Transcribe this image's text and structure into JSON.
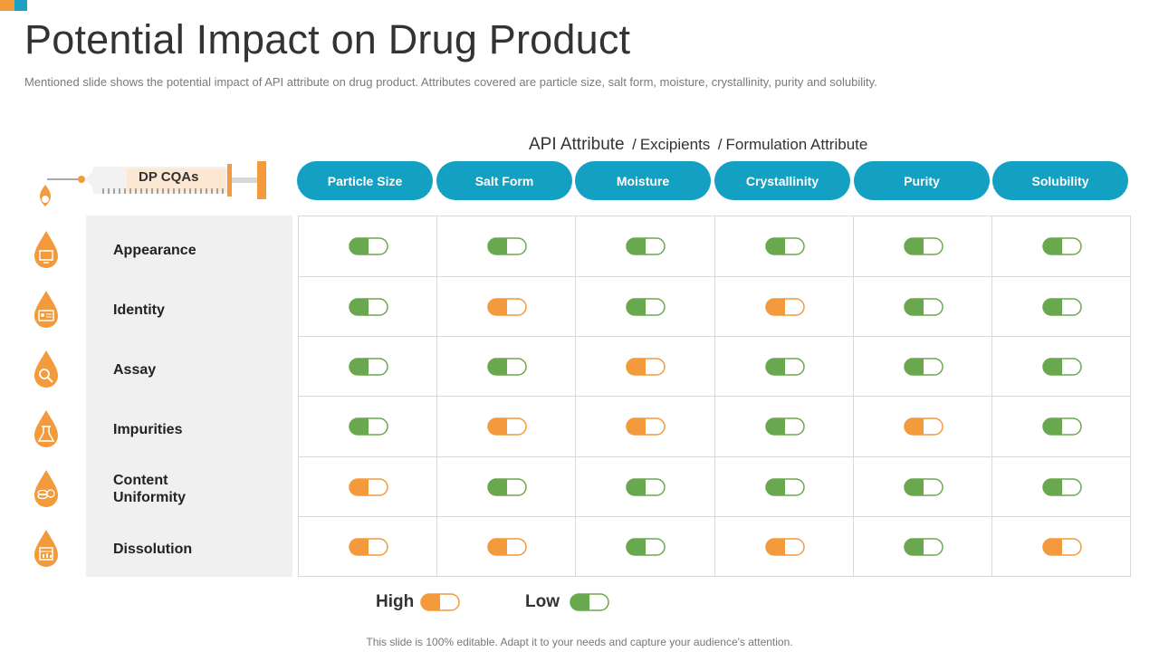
{
  "title": "Potential Impact on Drug Product",
  "subtitle": "Mentioned slide shows the potential impact of API attribute on drug product. Attributes covered are particle size,  salt form, moisture, crystallinity, purity and solubility.",
  "header": {
    "primary": "API Attribute",
    "sep1": "/",
    "secondary": "Excipients",
    "sep2": "/",
    "tertiary": "Formulation Attribute"
  },
  "syringe_label": "DP CQAs",
  "columns": [
    "Particle Size",
    "Salt Form",
    "Moisture",
    "Crystallinity",
    "Purity",
    "Solubility"
  ],
  "rows": [
    {
      "label": "Appearance",
      "icon": "monitor-icon",
      "values": [
        "low",
        "low",
        "low",
        "low",
        "low",
        "low"
      ]
    },
    {
      "label": "Identity",
      "icon": "id-card-icon",
      "values": [
        "low",
        "high",
        "low",
        "high",
        "low",
        "low"
      ]
    },
    {
      "label": "Assay",
      "icon": "magnifier-icon",
      "values": [
        "low",
        "low",
        "high",
        "low",
        "low",
        "low"
      ]
    },
    {
      "label": "Impurities",
      "icon": "flask-icon",
      "values": [
        "low",
        "high",
        "high",
        "low",
        "high",
        "low"
      ]
    },
    {
      "label": "Content Uniformity",
      "label_line1": "Content",
      "label_line2": "Uniformity",
      "icon": "coins-icon",
      "values": [
        "high",
        "low",
        "low",
        "low",
        "low",
        "low"
      ]
    },
    {
      "label": "Dissolution",
      "icon": "chart-icon",
      "values": [
        "high",
        "high",
        "low",
        "high",
        "low",
        "high"
      ]
    }
  ],
  "legend": {
    "high_label": "High",
    "low_label": "Low"
  },
  "footer": "This slide is 100% editable. Adapt it to your needs and capture your audience's attention.",
  "colors": {
    "accent_blue": "#13A0C2",
    "high_orange": "#F39A3C",
    "low_green": "#6AA84F",
    "drop_orange": "#F39A3C"
  }
}
